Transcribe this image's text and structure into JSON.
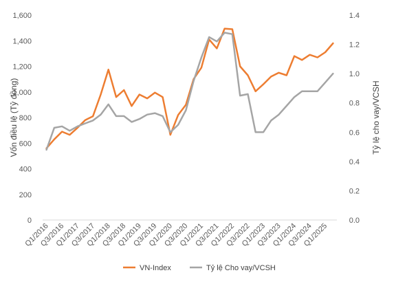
{
  "chart_data": {
    "type": "line",
    "categories": [
      "Q1/2016",
      "Q2/2016",
      "Q3/2016",
      "Q4/2016",
      "Q1/2017",
      "Q2/2017",
      "Q3/2017",
      "Q4/2017",
      "Q1/2018",
      "Q2/2018",
      "Q3/2018",
      "Q4/2018",
      "Q1/2019",
      "Q2/2019",
      "Q3/2019",
      "Q4/2019",
      "Q1/2020",
      "Q2/2020",
      "Q3/2020",
      "Q4/2020",
      "Q1/2021",
      "Q2/2021",
      "Q3/2021",
      "Q4/2021",
      "Q1/2022",
      "Q2/2022",
      "Q3/2022",
      "Q4/2022",
      "Q1/2023",
      "Q2/2023",
      "Q3/2023",
      "Q4/2023",
      "Q1/2024",
      "Q2/2024",
      "Q3/2024",
      "Q4/2024",
      "Q1/2025",
      "Q2/2025"
    ],
    "x_tick_labels": [
      "Q1/2016",
      "Q3/2016",
      "Q1/2017",
      "Q3/2017",
      "Q1/2018",
      "Q3/2018",
      "Q1/2019",
      "Q3/2019",
      "Q1/2020",
      "Q3/2020",
      "Q1/2021",
      "Q3/2021",
      "Q1/2022",
      "Q3/2022",
      "Q1/2023",
      "Q3/2023",
      "Q1/2024",
      "Q3/2024",
      "Q1/2025"
    ],
    "series": [
      {
        "name": "VN-Index",
        "axis": "left",
        "color": "#ED7D31",
        "values": [
          560,
          630,
          690,
          665,
          720,
          780,
          810,
          980,
          1175,
          960,
          1015,
          890,
          980,
          950,
          995,
          960,
          665,
          820,
          900,
          1100,
          1190,
          1410,
          1340,
          1495,
          1490,
          1200,
          1130,
          1005,
          1060,
          1120,
          1150,
          1130,
          1280,
          1250,
          1290,
          1270,
          1310,
          1380
        ]
      },
      {
        "name": "Tỷ lệ Cho vay/VCSH",
        "axis": "right",
        "color": "#A5A5A5",
        "values": [
          0.48,
          0.63,
          0.64,
          0.61,
          0.64,
          0.66,
          0.68,
          0.72,
          0.79,
          0.71,
          0.71,
          0.67,
          0.69,
          0.72,
          0.73,
          0.71,
          0.6,
          0.65,
          0.75,
          0.95,
          1.11,
          1.25,
          1.22,
          1.28,
          1.27,
          0.85,
          0.86,
          0.6,
          0.6,
          0.68,
          0.72,
          0.78,
          0.84,
          0.88,
          0.88,
          0.88,
          0.94,
          1.0
        ]
      }
    ],
    "y_left": {
      "label": "Vốn điều lệ (Tỷ đồng)",
      "min": 0,
      "max": 1600,
      "ticks": [
        "0",
        "200",
        "400",
        "600",
        "800",
        "1,000",
        "1,200",
        "1,400",
        "1,600"
      ]
    },
    "y_right": {
      "label": "Tỷ lệ cho vay/VCSH",
      "min": 0,
      "max": 1.4,
      "ticks": [
        "0.0",
        "0.2",
        "0.4",
        "0.6",
        "0.8",
        "1.0",
        "1.2",
        "1.4"
      ]
    },
    "title": "",
    "grid": false,
    "legend_position": "bottom"
  }
}
